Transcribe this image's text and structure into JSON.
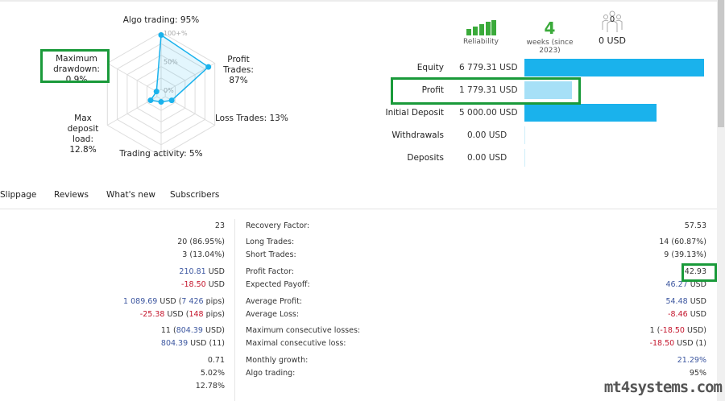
{
  "radar": {
    "axes": [
      {
        "label": "Algo trading: 95%",
        "value": 95
      },
      {
        "label": "Profit Trades: 87%",
        "value": 87
      },
      {
        "label": "Loss Trades: 13%",
        "value": 13
      },
      {
        "label": "Trading activity: 5%",
        "value": 5
      },
      {
        "label": "Max deposit load: 12.8%",
        "value": 12.8
      },
      {
        "label": "Maximum drawdown: 0.9%",
        "value": 0.9
      }
    ],
    "scale_labels": [
      "100+%",
      "50%",
      "0%"
    ],
    "color": "#1ab2ec"
  },
  "metrics": {
    "reliability_label": "Reliability",
    "weeks_value": "4",
    "weeks_label": "weeks (since 2023)",
    "subscribers_count": "0",
    "subscribers_funds": "0 USD"
  },
  "financials": [
    {
      "label": "Equity",
      "value": "6 779.31 USD",
      "amount": 6779.31,
      "color": "#1ab2ec"
    },
    {
      "label": "Profit",
      "value": "1 779.31 USD",
      "amount": 1779.31,
      "color": "#a6e0f7"
    },
    {
      "label": "Initial Deposit",
      "value": "5 000.00 USD",
      "amount": 5000.0,
      "color": "#1ab2ec"
    },
    {
      "label": "Withdrawals",
      "value": "0.00 USD",
      "amount": 0,
      "color": "#1ab2ec"
    },
    {
      "label": "Deposits",
      "value": "0.00 USD",
      "amount": 0,
      "color": "#1ab2ec"
    }
  ],
  "tabs": [
    "Slippage",
    "Reviews",
    "What's new",
    "Subscribers"
  ],
  "stats": [
    {
      "left": [
        {
          "t": "23"
        }
      ],
      "label": "Recovery Factor:",
      "right": [
        {
          "t": "57.53"
        }
      ]
    },
    {
      "left": [
        {
          "t": "20 (86.95%)"
        }
      ],
      "label": "Long Trades:",
      "right": [
        {
          "t": "14 (60.87%)"
        }
      ]
    },
    {
      "left": [
        {
          "t": "3 (13.04%)"
        }
      ],
      "label": "Short Trades:",
      "right": [
        {
          "t": "9 (39.13%)"
        }
      ]
    },
    {
      "left": [
        {
          "t": "210.81",
          "c": "blue"
        },
        {
          "t": " USD"
        }
      ],
      "label": "Profit Factor:",
      "right": [
        {
          "t": "42.93"
        }
      ]
    },
    {
      "left": [
        {
          "t": "-18.50",
          "c": "red"
        },
        {
          "t": " USD"
        }
      ],
      "label": "Expected Payoff:",
      "right": [
        {
          "t": "46.27",
          "c": "blue"
        },
        {
          "t": " USD"
        }
      ]
    },
    {
      "left": [
        {
          "t": "1 089.69",
          "c": "blue"
        },
        {
          "t": " USD ("
        },
        {
          "t": "7 426",
          "c": "blue"
        },
        {
          "t": " pips)"
        }
      ],
      "label": "Average Profit:",
      "right": [
        {
          "t": "54.48",
          "c": "blue"
        },
        {
          "t": " USD"
        }
      ]
    },
    {
      "left": [
        {
          "t": "-25.38",
          "c": "red"
        },
        {
          "t": " USD ("
        },
        {
          "t": "148",
          "c": "red"
        },
        {
          "t": " pips)"
        }
      ],
      "label": "Average Loss:",
      "right": [
        {
          "t": "-8.46",
          "c": "red"
        },
        {
          "t": " USD"
        }
      ]
    },
    {
      "left": [
        {
          "t": "11 ("
        },
        {
          "t": "804.39",
          "c": "blue"
        },
        {
          "t": " USD)"
        }
      ],
      "label": "Maximum consecutive losses:",
      "right": [
        {
          "t": "1 ("
        },
        {
          "t": "-18.50",
          "c": "red"
        },
        {
          "t": " USD)"
        }
      ]
    },
    {
      "left": [
        {
          "t": "804.39",
          "c": "blue"
        },
        {
          "t": " USD (11)"
        }
      ],
      "label": "Maximal consecutive loss:",
      "right": [
        {
          "t": "-18.50",
          "c": "red"
        },
        {
          "t": " USD (1)"
        }
      ]
    },
    {
      "left": [
        {
          "t": "0.71"
        }
      ],
      "label": "Monthly growth:",
      "right": [
        {
          "t": "21.29%",
          "c": "blue"
        }
      ]
    },
    {
      "left": [
        {
          "t": "5.02%"
        }
      ],
      "label": "Algo trading:",
      "right": [
        {
          "t": "95%"
        }
      ]
    },
    {
      "left": [
        {
          "t": "12.78%"
        }
      ],
      "label": "",
      "right": []
    }
  ],
  "watermark": "mt4systems.com",
  "highlight_color": "#1a9a3a"
}
